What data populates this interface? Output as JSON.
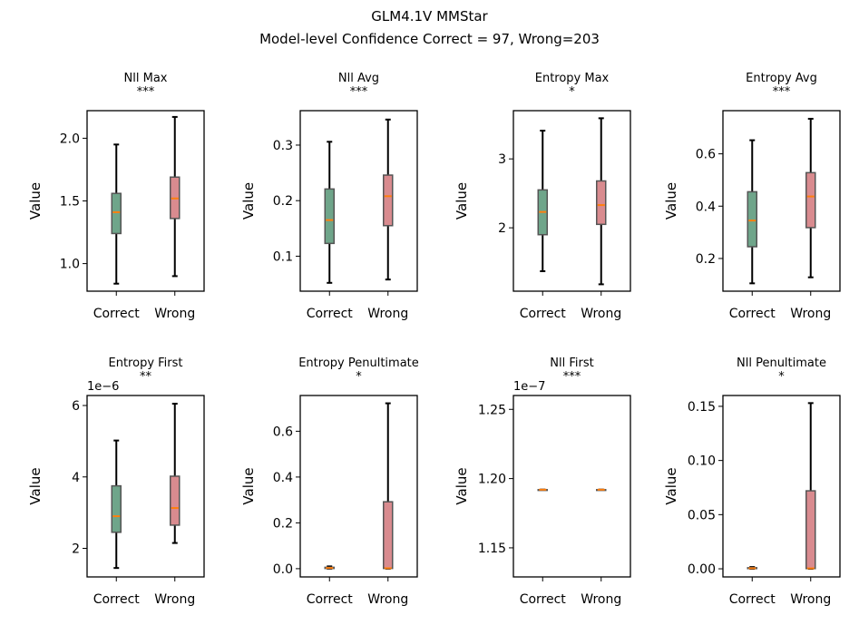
{
  "figure": {
    "title_line1": "GLM4.1V MMStar",
    "title_line2": "Model-level Confidence Correct = 97, Wrong=203"
  },
  "colors": {
    "correct_box": "#6fa58a",
    "wrong_box": "#d98b8f",
    "median": "#ff7f0e",
    "whisker": "#000000",
    "box_edge": "#555555"
  },
  "chart_data": [
    {
      "type": "box",
      "title": "Nll Max",
      "significance": "***",
      "categories": [
        "Correct",
        "Wrong"
      ],
      "ylabel": "Value",
      "ylim": [
        0.78,
        2.22
      ],
      "yticks": [
        1.0,
        1.5,
        2.0
      ],
      "ytick_labels": [
        "1.0",
        "1.5",
        "2.0"
      ],
      "offset_label": "",
      "boxes": [
        {
          "name": "Correct",
          "min": 0.84,
          "q1": 1.24,
          "median": 1.41,
          "q3": 1.56,
          "max": 1.95
        },
        {
          "name": "Wrong",
          "min": 0.9,
          "q1": 1.36,
          "median": 1.52,
          "q3": 1.69,
          "max": 2.17
        }
      ]
    },
    {
      "type": "box",
      "title": "Nll Avg",
      "significance": "***",
      "categories": [
        "Correct",
        "Wrong"
      ],
      "ylabel": "Value",
      "ylim": [
        0.037,
        0.362
      ],
      "yticks": [
        0.1,
        0.2,
        0.3
      ],
      "ytick_labels": [
        "0.1",
        "0.2",
        "0.3"
      ],
      "offset_label": "",
      "boxes": [
        {
          "name": "Correct",
          "min": 0.052,
          "q1": 0.123,
          "median": 0.165,
          "q3": 0.221,
          "max": 0.306
        },
        {
          "name": "Wrong",
          "min": 0.058,
          "q1": 0.155,
          "median": 0.208,
          "q3": 0.246,
          "max": 0.346
        }
      ]
    },
    {
      "type": "box",
      "title": "Entropy Max",
      "significance": "*",
      "categories": [
        "Correct",
        "Wrong"
      ],
      "ylabel": "Value",
      "ylim": [
        1.08,
        3.7
      ],
      "yticks": [
        2,
        3
      ],
      "ytick_labels": [
        "2",
        "3"
      ],
      "offset_label": "",
      "boxes": [
        {
          "name": "Correct",
          "min": 1.37,
          "q1": 1.9,
          "median": 2.23,
          "q3": 2.55,
          "max": 3.41
        },
        {
          "name": "Wrong",
          "min": 1.18,
          "q1": 2.05,
          "median": 2.33,
          "q3": 2.68,
          "max": 3.59
        }
      ]
    },
    {
      "type": "box",
      "title": "Entropy Avg",
      "significance": "***",
      "categories": [
        "Correct",
        "Wrong"
      ],
      "ylabel": "Value",
      "ylim": [
        0.075,
        0.765
      ],
      "yticks": [
        0.2,
        0.4,
        0.6
      ],
      "ytick_labels": [
        "0.2",
        "0.4",
        "0.6"
      ],
      "offset_label": "",
      "boxes": [
        {
          "name": "Correct",
          "min": 0.105,
          "q1": 0.245,
          "median": 0.345,
          "q3": 0.455,
          "max": 0.652
        },
        {
          "name": "Wrong",
          "min": 0.128,
          "q1": 0.318,
          "median": 0.437,
          "q3": 0.528,
          "max": 0.734
        }
      ]
    },
    {
      "type": "box",
      "title": "Entropy First",
      "significance": "**",
      "categories": [
        "Correct",
        "Wrong"
      ],
      "ylabel": "Value",
      "ylim": [
        1.2,
        6.28
      ],
      "yticks": [
        2,
        4,
        6
      ],
      "ytick_labels": [
        "2",
        "4",
        "6"
      ],
      "offset_label": "1e−6",
      "boxes": [
        {
          "name": "Correct",
          "min": 1.45,
          "q1": 2.45,
          "median": 2.9,
          "q3": 3.75,
          "max": 5.02
        },
        {
          "name": "Wrong",
          "min": 2.15,
          "q1": 2.65,
          "median": 3.13,
          "q3": 4.02,
          "max": 6.05
        }
      ]
    },
    {
      "type": "box",
      "title": "Entropy Penultimate",
      "significance": "*",
      "categories": [
        "Correct",
        "Wrong"
      ],
      "ylabel": "Value",
      "ylim": [
        -0.036,
        0.756
      ],
      "yticks": [
        0.0,
        0.2,
        0.4,
        0.6
      ],
      "ytick_labels": [
        "0.0",
        "0.2",
        "0.4",
        "0.6"
      ],
      "offset_label": "",
      "boxes": [
        {
          "name": "Correct",
          "min": 0.0,
          "q1": 0.001,
          "median": 0.003,
          "q3": 0.006,
          "max": 0.01
        },
        {
          "name": "Wrong",
          "min": 0.0,
          "q1": 0.001,
          "median": 0.002,
          "q3": 0.292,
          "max": 0.722
        }
      ]
    },
    {
      "type": "box",
      "title": "Nll First",
      "significance": "***",
      "categories": [
        "Correct",
        "Wrong"
      ],
      "ylabel": "Value",
      "ylim": [
        1.129,
        1.26
      ],
      "yticks": [
        1.15,
        1.2,
        1.25
      ],
      "ytick_labels": [
        "1.15",
        "1.20",
        "1.25"
      ],
      "offset_label": "1e−7",
      "boxes": [
        {
          "name": "Correct",
          "min": 1.192,
          "q1": 1.192,
          "median": 1.192,
          "q3": 1.192,
          "max": 1.192
        },
        {
          "name": "Wrong",
          "min": 1.192,
          "q1": 1.192,
          "median": 1.192,
          "q3": 1.192,
          "max": 1.192
        }
      ]
    },
    {
      "type": "box",
      "title": "Nll Penultimate",
      "significance": "*",
      "categories": [
        "Correct",
        "Wrong"
      ],
      "ylabel": "Value",
      "ylim": [
        -0.0075,
        0.16
      ],
      "yticks": [
        0.0,
        0.05,
        0.1,
        0.15
      ],
      "ytick_labels": [
        "0.00",
        "0.05",
        "0.10",
        "0.15"
      ],
      "offset_label": "",
      "boxes": [
        {
          "name": "Correct",
          "min": 0.0,
          "q1": 0.0002,
          "median": 0.0005,
          "q3": 0.001,
          "max": 0.0016
        },
        {
          "name": "Wrong",
          "min": 0.0,
          "q1": 0.0002,
          "median": 0.0004,
          "q3": 0.072,
          "max": 0.153
        }
      ]
    }
  ]
}
